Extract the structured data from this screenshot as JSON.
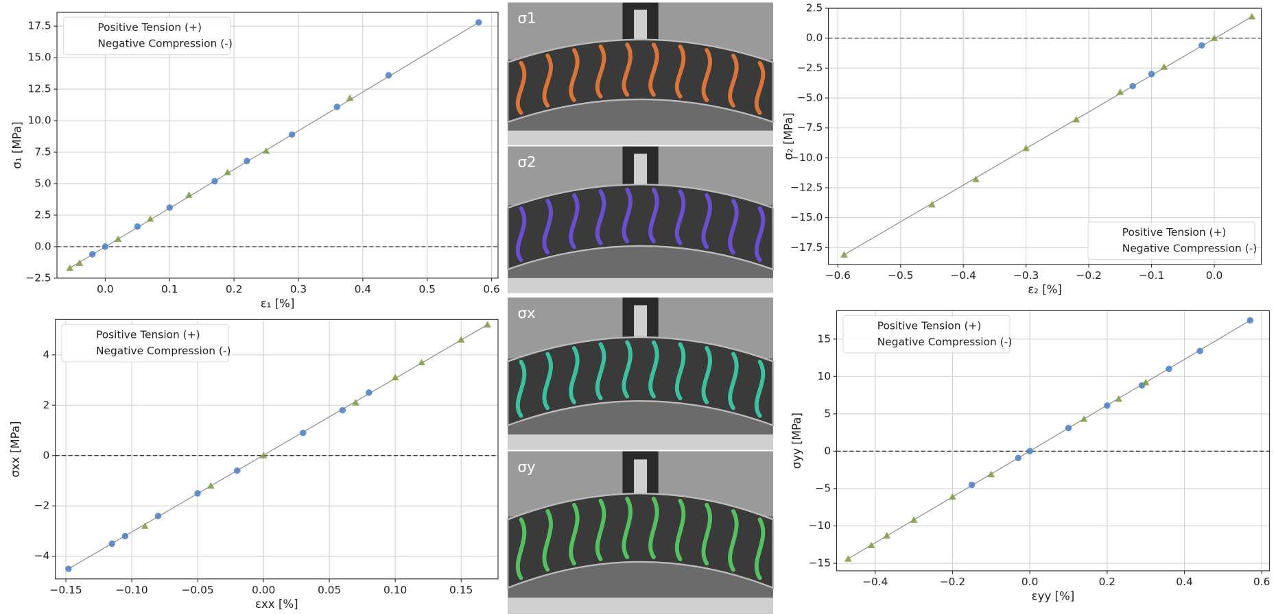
{
  "chart_data": [
    {
      "type": "scatter",
      "xlabel": "ε₁ [%]",
      "ylabel": "σ₁ [MPa]",
      "grid": true,
      "legend": "upper left",
      "hline": 0,
      "xlim": [
        -0.075,
        0.61
      ],
      "ylim": [
        -2.5,
        18.6
      ],
      "xticks": [
        {
          "value": 0,
          "label": "0.0"
        },
        0.1,
        0.2,
        0.3,
        0.4,
        0.5,
        0.6
      ],
      "yticks": [
        {
          "value": -2.5,
          "label": "−2.5"
        },
        {
          "value": 0,
          "label": "0.0"
        },
        2.5,
        {
          "value": 5,
          "label": "5.0"
        },
        7.5,
        {
          "value": 10,
          "label": "10.0"
        },
        12.5,
        {
          "value": 15,
          "label": "15.0"
        },
        17.5
      ],
      "fit_line": {
        "x": [
          -0.055,
          0.58
        ],
        "values": [
          -1.7,
          17.8
        ]
      },
      "series": [
        {
          "name": "Positive Tension (+)",
          "color": "#4a7fc1",
          "marker": "circle",
          "x": [
            0.58,
            0.44,
            0.36,
            0.29,
            0.22,
            0.17,
            0.1,
            0.05,
            0.0,
            -0.02
          ],
          "values": [
            17.8,
            13.6,
            11.1,
            8.9,
            6.8,
            5.2,
            3.1,
            1.6,
            0,
            -0.6
          ]
        },
        {
          "name": "Negative Compression (-)",
          "color": "#7e9a3e",
          "marker": "triangle",
          "x": [
            0.38,
            0.25,
            0.19,
            0.13,
            0.07,
            0.02,
            -0.04,
            -0.055
          ],
          "values": [
            11.8,
            7.6,
            5.9,
            4.1,
            2.2,
            0.6,
            -1.3,
            -1.7
          ]
        }
      ]
    },
    {
      "type": "scatter",
      "xlabel": "ε₂ [%]",
      "ylabel": "σ₂ [MPa]",
      "grid": true,
      "legend": "lower right",
      "hline": 0,
      "xlim": [
        -0.615,
        0.075
      ],
      "ylim": [
        -18.9,
        2.5
      ],
      "xticks": [
        {
          "value": -0.6,
          "label": "−0.6"
        },
        {
          "value": -0.5,
          "label": "−0.5"
        },
        {
          "value": -0.4,
          "label": "−0.4"
        },
        {
          "value": -0.3,
          "label": "−0.3"
        },
        {
          "value": -0.2,
          "label": "−0.2"
        },
        {
          "value": -0.1,
          "label": "−0.1"
        },
        {
          "value": 0,
          "label": "0.0"
        }
      ],
      "yticks": [
        {
          "value": -17.5,
          "label": "−17.5"
        },
        {
          "value": -15,
          "label": "−15.0"
        },
        {
          "value": -12.5,
          "label": "−12.5"
        },
        {
          "value": -10,
          "label": "−10.0"
        },
        {
          "value": -7.5,
          "label": "−7.5"
        },
        {
          "value": -5,
          "label": "−5.0"
        },
        {
          "value": -2.5,
          "label": "−2.5"
        },
        {
          "value": 0,
          "label": "0.0"
        },
        2.5
      ],
      "fit_line": {
        "x": [
          -0.59,
          0.06
        ],
        "values": [
          -18.1,
          1.8
        ]
      },
      "series": [
        {
          "name": "Positive Tension (+)",
          "color": "#4a7fc1",
          "marker": "circle",
          "x": [
            -0.02,
            -0.1,
            -0.13
          ],
          "values": [
            -0.6,
            -3.0,
            -4.0
          ]
        },
        {
          "name": "Negative Compression (-)",
          "color": "#7e9a3e",
          "marker": "triangle",
          "x": [
            0.06,
            0.0,
            -0.08,
            -0.15,
            -0.22,
            -0.3,
            -0.38,
            -0.45,
            -0.59
          ],
          "values": [
            1.8,
            0,
            -2.4,
            -4.5,
            -6.8,
            -9.2,
            -11.8,
            -13.9,
            -18.1
          ]
        }
      ]
    },
    {
      "type": "scatter",
      "xlabel": "εxx [%]",
      "ylabel": "σxx [MPa]",
      "grid": true,
      "legend": "upper left",
      "hline": 0,
      "xlim": [
        -0.158,
        0.178
      ],
      "ylim": [
        -4.9,
        5.4
      ],
      "xticks": [
        {
          "value": -0.15,
          "label": "−0.15"
        },
        {
          "value": -0.1,
          "label": "−0.10"
        },
        {
          "value": -0.05,
          "label": "−0.05"
        },
        {
          "value": 0,
          "label": "0.00"
        },
        0.05,
        {
          "value": 0.1,
          "label": "0.10"
        },
        0.15
      ],
      "yticks": [
        {
          "value": -4,
          "label": "−4"
        },
        {
          "value": -2,
          "label": "−2"
        },
        0,
        2,
        4
      ],
      "fit_line": {
        "x": [
          -0.148,
          0.17
        ],
        "values": [
          -4.5,
          5.2
        ]
      },
      "series": [
        {
          "name": "Positive Tension (+)",
          "color": "#4a7fc1",
          "marker": "circle",
          "x": [
            -0.148,
            -0.115,
            -0.105,
            -0.08,
            -0.05,
            -0.02,
            0.03,
            0.06,
            0.08
          ],
          "values": [
            -4.5,
            -3.5,
            -3.2,
            -2.4,
            -1.5,
            -0.6,
            0.9,
            1.8,
            2.5
          ]
        },
        {
          "name": "Negative Compression (-)",
          "color": "#7e9a3e",
          "marker": "triangle",
          "x": [
            0.17,
            0.15,
            0.12,
            0.1,
            0.07,
            0.0,
            -0.04,
            -0.09
          ],
          "values": [
            5.2,
            4.6,
            3.7,
            3.1,
            2.1,
            0,
            -1.2,
            -2.8
          ]
        }
      ]
    },
    {
      "type": "scatter",
      "xlabel": "εyy [%]",
      "ylabel": "σyy [MPa]",
      "grid": true,
      "legend": "upper left",
      "hline": 0,
      "xlim": [
        -0.5,
        0.62
      ],
      "ylim": [
        -16,
        18.8
      ],
      "xticks": [
        {
          "value": -0.4,
          "label": "−0.4"
        },
        {
          "value": -0.2,
          "label": "−0.2"
        },
        {
          "value": 0,
          "label": "0.0"
        },
        0.2,
        0.4,
        0.6
      ],
      "yticks": [
        {
          "value": -15,
          "label": "−15"
        },
        {
          "value": -10,
          "label": "−10"
        },
        {
          "value": -5,
          "label": "−5"
        },
        0,
        5,
        10,
        15
      ],
      "fit_line": {
        "x": [
          -0.47,
          0.57
        ],
        "values": [
          -14.4,
          17.5
        ]
      },
      "series": [
        {
          "name": "Positive Tension (+)",
          "color": "#4a7fc1",
          "marker": "circle",
          "x": [
            0.57,
            0.44,
            0.36,
            0.29,
            0.2,
            0.1,
            0.0,
            -0.03,
            -0.15
          ],
          "values": [
            17.5,
            13.4,
            11,
            8.8,
            6.1,
            3.1,
            0,
            -0.9,
            -4.5
          ]
        },
        {
          "name": "Negative Compression (-)",
          "color": "#7e9a3e",
          "marker": "triangle",
          "x": [
            0.3,
            0.23,
            0.14,
            -0.1,
            -0.2,
            -0.3,
            -0.37,
            -0.41,
            -0.47
          ],
          "values": [
            9.2,
            7,
            4.3,
            -3.1,
            -6.1,
            -9.2,
            -11.3,
            -12.6,
            -14.4
          ]
        }
      ]
    }
  ],
  "panels": [
    {
      "label": "σ1"
    },
    {
      "label": "σ2"
    },
    {
      "label": "σx"
    },
    {
      "label": "σy"
    }
  ]
}
